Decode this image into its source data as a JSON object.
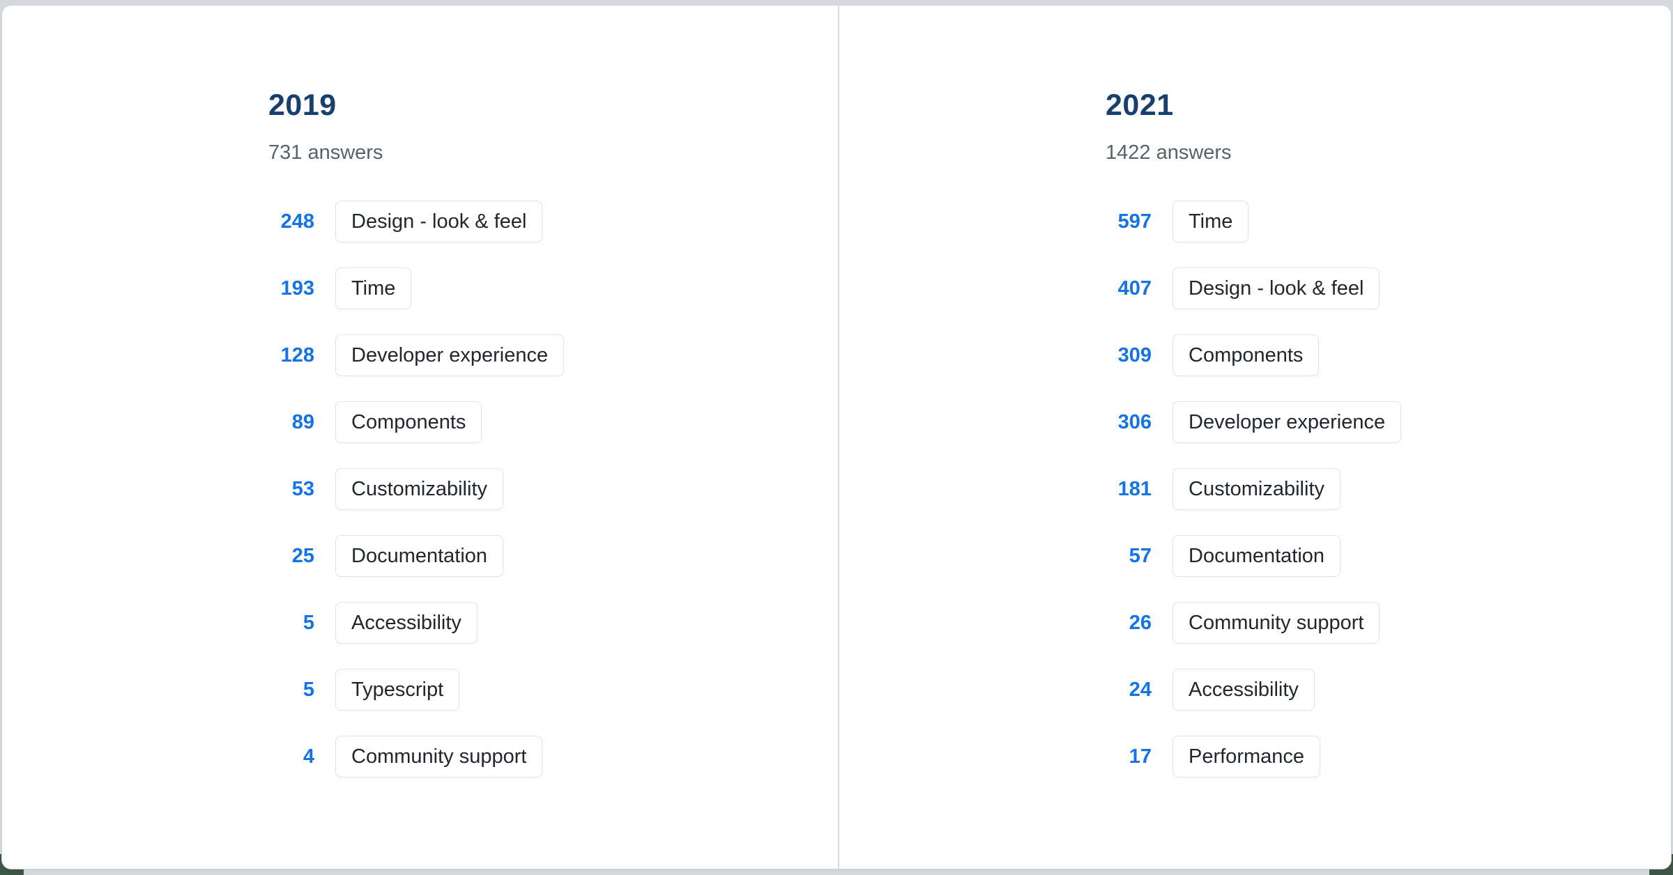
{
  "columns": [
    {
      "year": "2019",
      "answers_label": "731 answers",
      "items": [
        {
          "count": "248",
          "label": "Design - look & feel"
        },
        {
          "count": "193",
          "label": "Time"
        },
        {
          "count": "128",
          "label": "Developer experience"
        },
        {
          "count": "89",
          "label": "Components"
        },
        {
          "count": "53",
          "label": "Customizability"
        },
        {
          "count": "25",
          "label": "Documentation"
        },
        {
          "count": "5",
          "label": "Accessibility"
        },
        {
          "count": "5",
          "label": "Typescript"
        },
        {
          "count": "4",
          "label": "Community support"
        }
      ]
    },
    {
      "year": "2021",
      "answers_label": "1422 answers",
      "items": [
        {
          "count": "597",
          "label": "Time"
        },
        {
          "count": "407",
          "label": "Design - look & feel"
        },
        {
          "count": "309",
          "label": "Components"
        },
        {
          "count": "306",
          "label": "Developer experience"
        },
        {
          "count": "181",
          "label": "Customizability"
        },
        {
          "count": "57",
          "label": "Documentation"
        },
        {
          "count": "26",
          "label": "Community support"
        },
        {
          "count": "24",
          "label": "Accessibility"
        },
        {
          "count": "17",
          "label": "Performance"
        }
      ]
    }
  ],
  "colors": {
    "count_blue": "#1473e6",
    "heading_navy": "#173f6f",
    "muted_text": "#57626b",
    "chip_border": "#e0e4e7",
    "divider": "#d8dcdf",
    "card_border": "#cfd4d8",
    "background_gray": "#d5d9dc",
    "background_green": "#3e5646"
  },
  "chart_data": {
    "type": "table",
    "title": "Survey answers comparison 2019 vs 2021",
    "groups": [
      {
        "title": "2019",
        "subtitle": "731 answers",
        "categories": [
          "Design - look & feel",
          "Time",
          "Developer experience",
          "Components",
          "Customizability",
          "Documentation",
          "Accessibility",
          "Typescript",
          "Community support"
        ],
        "values": [
          248,
          193,
          128,
          89,
          53,
          25,
          5,
          5,
          4
        ]
      },
      {
        "title": "2021",
        "subtitle": "1422 answers",
        "categories": [
          "Time",
          "Design - look & feel",
          "Components",
          "Developer experience",
          "Customizability",
          "Documentation",
          "Community support",
          "Accessibility",
          "Performance"
        ],
        "values": [
          597,
          407,
          309,
          306,
          181,
          57,
          26,
          24,
          17
        ]
      }
    ]
  }
}
